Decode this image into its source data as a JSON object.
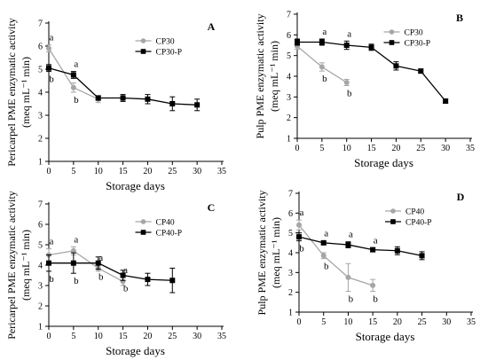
{
  "colors": {
    "series_gray": "#a6a6a6",
    "series_black": "#000000",
    "axis": "#000000"
  },
  "chart_data": [
    {
      "id": "A",
      "type": "line",
      "panel_label": "A",
      "xlabel": "Storage days",
      "ylabel": [
        "Pericarpel PME enzymatic activity",
        "(meq mL⁻¹ min)"
      ],
      "xlim": [
        0,
        35
      ],
      "ylim": [
        1,
        7
      ],
      "xticks": [
        0,
        5,
        10,
        15,
        20,
        25,
        30,
        35
      ],
      "yticks": [
        1,
        2,
        3,
        4,
        5,
        6,
        7
      ],
      "legend_position": "top-right",
      "series": [
        {
          "name": "CP30",
          "color": "gray",
          "marker": "circle",
          "x": [
            0,
            5,
            10
          ],
          "y": [
            5.9,
            4.2,
            3.7
          ],
          "err": [
            0.15,
            0.2,
            0.15
          ],
          "labels": [
            "a",
            "b",
            ""
          ]
        },
        {
          "name": "CP30-P",
          "color": "black",
          "marker": "square",
          "x": [
            0,
            5,
            10,
            15,
            20,
            25,
            30
          ],
          "y": [
            5.05,
            4.75,
            3.75,
            3.75,
            3.7,
            3.5,
            3.45
          ],
          "err": [
            0.15,
            0.15,
            0.1,
            0.15,
            0.2,
            0.3,
            0.25
          ],
          "labels": [
            "b",
            "a",
            "",
            "",
            "",
            "",
            ""
          ]
        }
      ]
    },
    {
      "id": "B",
      "type": "line",
      "panel_label": "B",
      "xlabel": "Storage days",
      "ylabel": [
        "Pulp PME enzymatic activity",
        "(meq mL⁻¹ min)"
      ],
      "xlim": [
        0,
        35
      ],
      "ylim": [
        1,
        7
      ],
      "xticks": [
        0,
        5,
        10,
        15,
        20,
        25,
        30,
        35
      ],
      "yticks": [
        1,
        2,
        3,
        4,
        5,
        6,
        7
      ],
      "legend_position": "top-right",
      "series": [
        {
          "name": "CP30",
          "color": "gray",
          "marker": "circle",
          "x": [
            0,
            5,
            10
          ],
          "y": [
            5.45,
            4.45,
            3.7
          ],
          "err": [
            0.15,
            0.2,
            0.15
          ],
          "labels": [
            "",
            "b",
            "b"
          ]
        },
        {
          "name": "CP30-P",
          "color": "black",
          "marker": "square",
          "x": [
            0,
            5,
            10,
            15,
            20,
            25,
            30
          ],
          "y": [
            5.65,
            5.65,
            5.5,
            5.4,
            4.5,
            4.25,
            2.8
          ],
          "err": [
            0.15,
            0.15,
            0.2,
            0.15,
            0.2,
            0.1,
            0.1
          ],
          "labels": [
            "",
            "a",
            "a",
            "",
            "",
            "",
            ""
          ]
        }
      ]
    },
    {
      "id": "C",
      "type": "line",
      "panel_label": "C",
      "xlabel": "Storage days",
      "ylabel": [
        "Pericarpel PME enzymatic activity",
        "(meq mL⁻¹ min)"
      ],
      "xlim": [
        0,
        35
      ],
      "ylim": [
        1,
        7
      ],
      "xticks": [
        0,
        5,
        10,
        15,
        20,
        25,
        30,
        35
      ],
      "yticks": [
        1,
        2,
        3,
        4,
        5,
        6,
        7
      ],
      "legend_position": "top-right",
      "series": [
        {
          "name": "CP40",
          "color": "gray",
          "marker": "circle",
          "x": [
            0,
            5,
            10,
            15
          ],
          "y": [
            4.5,
            4.7,
            3.85,
            3.2
          ],
          "err": [
            0.3,
            0.2,
            0.15,
            0.2
          ],
          "labels": [
            "a",
            "a",
            "a",
            "a"
          ]
        },
        {
          "name": "CP40-P",
          "color": "black",
          "marker": "square",
          "x": [
            0,
            5,
            10,
            15,
            20,
            25
          ],
          "y": [
            4.1,
            4.1,
            4.1,
            3.5,
            3.3,
            3.25
          ],
          "err": [
            0.4,
            0.5,
            0.3,
            0.25,
            0.3,
            0.6
          ],
          "labels": [
            "b",
            "b",
            "b",
            "b",
            "",
            ""
          ]
        }
      ]
    },
    {
      "id": "D",
      "type": "line",
      "panel_label": "D",
      "xlabel": "Storage days",
      "ylabel": [
        "Pulp PME enzymatic activity",
        "(meq mL⁻¹ min)"
      ],
      "xlim": [
        0,
        35
      ],
      "ylim": [
        1,
        7
      ],
      "xticks": [
        0,
        5,
        10,
        15,
        20,
        25,
        30,
        35
      ],
      "yticks": [
        1,
        2,
        3,
        4,
        5,
        6,
        7
      ],
      "legend_position": "top-right",
      "series": [
        {
          "name": "CP40",
          "color": "gray",
          "marker": "circle",
          "x": [
            0,
            5,
            10,
            15
          ],
          "y": [
            5.4,
            3.85,
            2.75,
            2.35
          ],
          "err": [
            0.25,
            0.15,
            0.7,
            0.3
          ],
          "labels": [
            "a",
            "b",
            "b",
            "b"
          ]
        },
        {
          "name": "CP40-P",
          "color": "black",
          "marker": "square",
          "x": [
            0,
            5,
            10,
            15,
            20,
            25
          ],
          "y": [
            4.8,
            4.5,
            4.4,
            4.15,
            4.1,
            3.85
          ],
          "err": [
            0.2,
            0.1,
            0.15,
            0.1,
            0.2,
            0.2
          ],
          "labels": [
            "b",
            "a",
            "a",
            "a",
            "",
            ""
          ]
        }
      ]
    }
  ]
}
